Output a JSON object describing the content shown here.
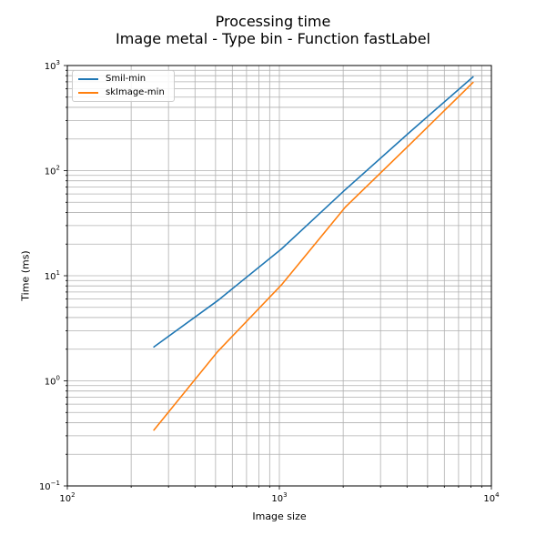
{
  "chart_data": {
    "type": "line",
    "title": "Processing time",
    "subtitle": "Image metal - Type bin - Function fastLabel",
    "xlabel": "Image size",
    "ylabel": "Time (ms)",
    "xscale": "log",
    "yscale": "log",
    "xlim": [
      100,
      10000
    ],
    "ylim": [
      0.1,
      1000
    ],
    "grid": "on (major and minor)",
    "legend_placement": "top-left",
    "x_tick_labels": [
      {
        "base": "10",
        "exp": "2"
      },
      {
        "base": "10",
        "exp": "3"
      },
      {
        "base": "10",
        "exp": "4"
      }
    ],
    "y_tick_labels": [
      {
        "base": "10",
        "exp": "−1"
      },
      {
        "base": "10",
        "exp": "0"
      },
      {
        "base": "10",
        "exp": "1"
      },
      {
        "base": "10",
        "exp": "2"
      },
      {
        "base": "10",
        "exp": "3"
      }
    ],
    "x": [
      256,
      512,
      1024,
      2048,
      4096,
      8192
    ],
    "series": [
      {
        "name": "Smil-min",
        "color": "#1f77b4",
        "values": [
          2.1,
          5.8,
          18,
          66,
          230,
          780
        ]
      },
      {
        "name": "skImage-min",
        "color": "#ff7f0e",
        "values": [
          0.34,
          1.9,
          8.2,
          45,
          175,
          690
        ]
      }
    ]
  }
}
